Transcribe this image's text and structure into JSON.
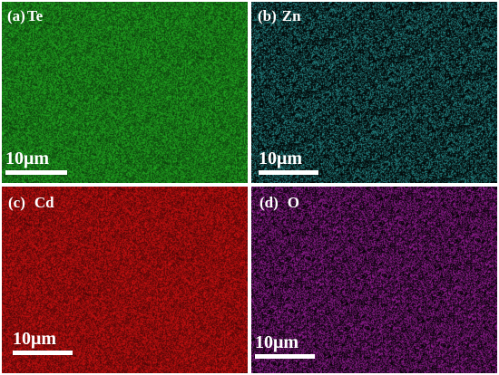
{
  "panels": [
    {
      "id": "a",
      "tag": "(a)",
      "element": "Te",
      "base_color": "#1f9e1f",
      "scale_label": "10μm"
    },
    {
      "id": "b",
      "tag": "(b)",
      "element": "Zn",
      "base_color": "#2a9a9a",
      "scale_label": "10μm"
    },
    {
      "id": "c",
      "tag": "(c)",
      "element": "Cd",
      "base_color": "#c01010",
      "scale_label": "10μm"
    },
    {
      "id": "d",
      "tag": "(d)",
      "element": "O",
      "base_color": "#a020a0",
      "scale_label": "10μm"
    }
  ]
}
